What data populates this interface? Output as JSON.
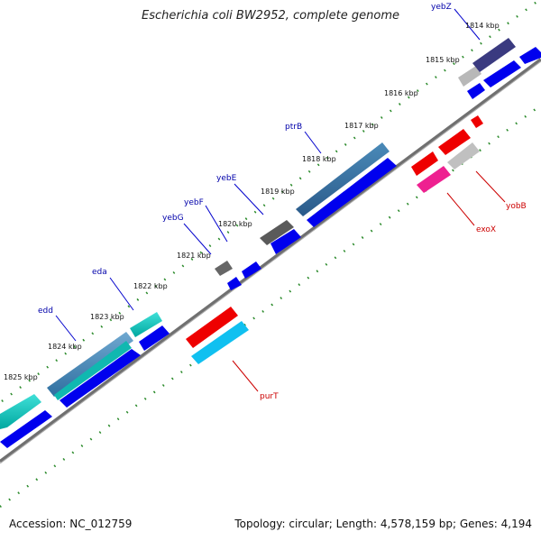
{
  "title": "Escherichia coli BW2952, complete genome",
  "accession": "Accession: NC_012759",
  "summary": "Topology: circular; Length: 4,578,159 bp; Genes: 4,194",
  "colors": {
    "background": "#ffffff",
    "backbone": "#808080",
    "tick": "#2a8a2a",
    "cds_forward": "#0000ee",
    "gene_label_blue": "#0000aa",
    "gene_label_red": "#cc0000"
  },
  "kbp_labels": [
    "1814 kbp",
    "1815 kbp",
    "1816 kbp",
    "1817 kbp",
    "1818 kbp",
    "1819 kbp",
    "1820 kbp",
    "1821 kbp",
    "1822 kbp",
    "1823 kbp",
    "1824 kbp",
    "1825 kbp"
  ],
  "gene_labels": [
    {
      "name": "yebZ",
      "color": "blue"
    },
    {
      "name": "ptrB",
      "color": "blue"
    },
    {
      "name": "yebE",
      "color": "blue"
    },
    {
      "name": "yebF",
      "color": "blue"
    },
    {
      "name": "yebG",
      "color": "blue"
    },
    {
      "name": "eda",
      "color": "blue"
    },
    {
      "name": "edd",
      "color": "blue"
    },
    {
      "name": "yobB",
      "color": "red"
    },
    {
      "name": "exoX",
      "color": "red"
    },
    {
      "name": "purT",
      "color": "red"
    }
  ]
}
